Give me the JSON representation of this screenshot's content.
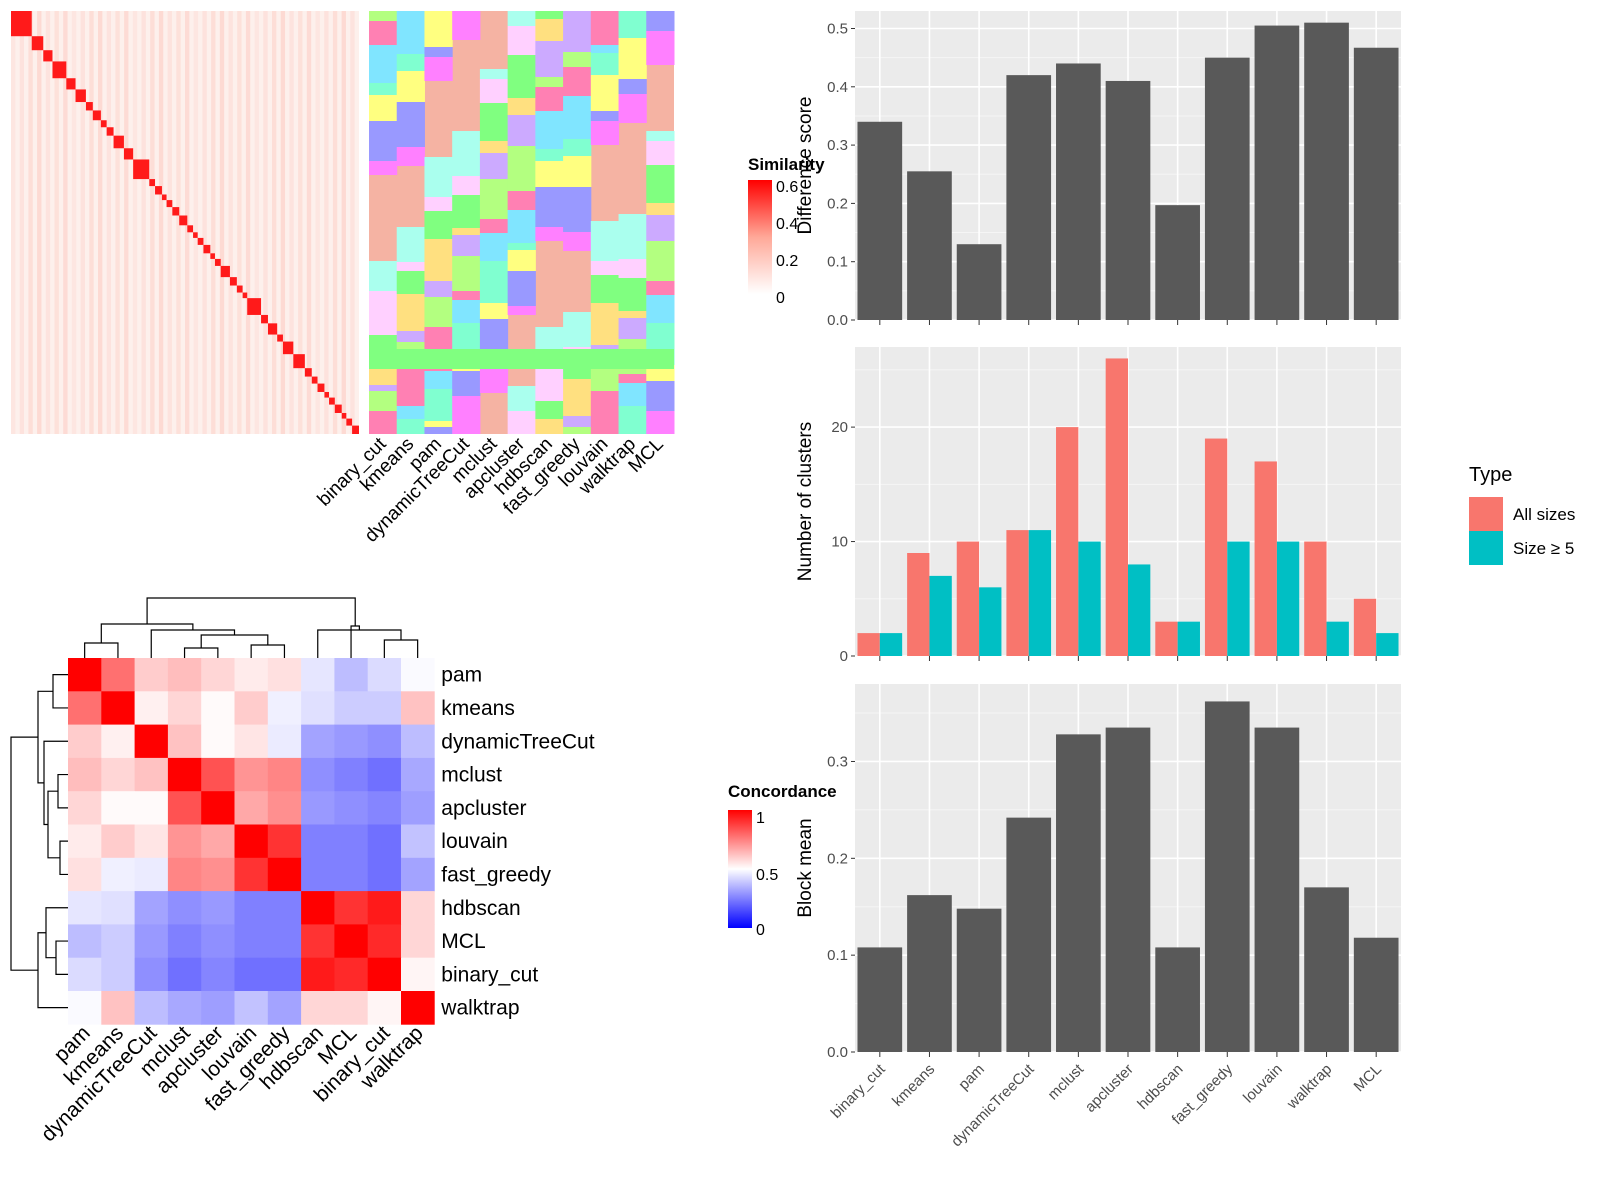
{
  "top_heatmap": {
    "legend_title": "Similarity",
    "legend_ticks": [
      "0.6",
      "0.4",
      "0.2",
      "0"
    ],
    "methods": [
      "binary_cut",
      "kmeans",
      "pam",
      "dynamicTreeCut",
      "mclust",
      "apcluster",
      "hdbscan",
      "fast_greedy",
      "louvain",
      "walktrap",
      "MCL"
    ]
  },
  "concordance_heatmap": {
    "legend_title": "Concordance",
    "legend_ticks": [
      "1",
      "0.5",
      "0"
    ],
    "rows": [
      "pam",
      "kmeans",
      "dynamicTreeCut",
      "mclust",
      "apcluster",
      "louvain",
      "fast_greedy",
      "hdbscan",
      "MCL",
      "binary_cut",
      "walktrap"
    ],
    "cols": [
      "pam",
      "kmeans",
      "dynamicTreeCut",
      "mclust",
      "apcluster",
      "louvain",
      "fast_greedy",
      "hdbscan",
      "MCL",
      "binary_cut",
      "walktrap"
    ]
  },
  "chart_data": [
    {
      "type": "heatmap",
      "name": "concordance",
      "rows": [
        "pam",
        "kmeans",
        "dynamicTreeCut",
        "mclust",
        "apcluster",
        "louvain",
        "fast_greedy",
        "hdbscan",
        "MCL",
        "binary_cut",
        "walktrap"
      ],
      "cols": [
        "pam",
        "kmeans",
        "dynamicTreeCut",
        "mclust",
        "apcluster",
        "louvain",
        "fast_greedy",
        "hdbscan",
        "MCL",
        "binary_cut",
        "walktrap"
      ],
      "values": [
        [
          1.0,
          0.78,
          0.6,
          0.63,
          0.58,
          0.54,
          0.56,
          0.45,
          0.37,
          0.43,
          0.49
        ],
        [
          0.78,
          1.0,
          0.53,
          0.58,
          0.51,
          0.6,
          0.47,
          0.44,
          0.4,
          0.4,
          0.62
        ],
        [
          0.6,
          0.53,
          1.0,
          0.62,
          0.51,
          0.55,
          0.46,
          0.32,
          0.3,
          0.28,
          0.37
        ],
        [
          0.63,
          0.58,
          0.62,
          1.0,
          0.84,
          0.71,
          0.74,
          0.28,
          0.25,
          0.22,
          0.33
        ],
        [
          0.58,
          0.51,
          0.51,
          0.84,
          1.0,
          0.67,
          0.72,
          0.3,
          0.28,
          0.26,
          0.31
        ],
        [
          0.54,
          0.6,
          0.55,
          0.71,
          0.67,
          1.0,
          0.9,
          0.25,
          0.25,
          0.22,
          0.38
        ],
        [
          0.56,
          0.47,
          0.46,
          0.74,
          0.72,
          0.9,
          1.0,
          0.25,
          0.25,
          0.22,
          0.32
        ],
        [
          0.45,
          0.44,
          0.32,
          0.28,
          0.3,
          0.25,
          0.25,
          1.0,
          0.9,
          0.95,
          0.58
        ],
        [
          0.37,
          0.4,
          0.3,
          0.25,
          0.28,
          0.25,
          0.25,
          0.9,
          1.0,
          0.92,
          0.58
        ],
        [
          0.43,
          0.4,
          0.28,
          0.22,
          0.26,
          0.22,
          0.22,
          0.95,
          0.92,
          1.0,
          0.52
        ],
        [
          0.49,
          0.62,
          0.37,
          0.33,
          0.31,
          0.38,
          0.32,
          0.58,
          0.58,
          0.52,
          1.0
        ]
      ],
      "scale": {
        "min": 0,
        "mid": 0.5,
        "max": 1
      }
    },
    {
      "type": "bar",
      "name": "difference",
      "ylabel": "Difference score",
      "categories": [
        "binary_cut",
        "kmeans",
        "pam",
        "dynamicTreeCut",
        "mclust",
        "apcluster",
        "hdbscan",
        "fast_greedy",
        "louvain",
        "walktrap",
        "MCL"
      ],
      "values": [
        0.34,
        0.255,
        0.13,
        0.42,
        0.44,
        0.41,
        0.197,
        0.45,
        0.505,
        0.51,
        0.467
      ],
      "ylim": [
        0,
        0.53
      ],
      "yticks": [
        0.0,
        0.1,
        0.2,
        0.3,
        0.4,
        0.5
      ],
      "ytick_labels": [
        "0.0",
        "0.1",
        "0.2",
        "0.3",
        "0.4",
        "0.5"
      ],
      "color": "#595959"
    },
    {
      "type": "bar",
      "name": "clusters",
      "ylabel": "Number of clusters",
      "categories": [
        "binary_cut",
        "kmeans",
        "pam",
        "dynamicTreeCut",
        "mclust",
        "apcluster",
        "hdbscan",
        "fast_greedy",
        "louvain",
        "walktrap",
        "MCL"
      ],
      "series": [
        {
          "name": "All sizes",
          "values": [
            2,
            9,
            10,
            11,
            20,
            26,
            3,
            19,
            17,
            10,
            5
          ],
          "color": "#F8766D"
        },
        {
          "name": "Size ≥ 5",
          "values": [
            2,
            7,
            6,
            11,
            10,
            8,
            3,
            10,
            10,
            3,
            2
          ],
          "color": "#00BFC4"
        }
      ],
      "legend_title": "Type",
      "ylim": [
        0,
        27
      ],
      "yticks": [
        0,
        10,
        20
      ],
      "ytick_labels": [
        "0",
        "10",
        "20"
      ]
    },
    {
      "type": "bar",
      "name": "blockmean",
      "ylabel": "Block mean",
      "categories": [
        "binary_cut",
        "kmeans",
        "pam",
        "dynamicTreeCut",
        "mclust",
        "apcluster",
        "hdbscan",
        "fast_greedy",
        "louvain",
        "walktrap",
        "MCL"
      ],
      "values": [
        0.108,
        0.162,
        0.148,
        0.242,
        0.328,
        0.335,
        0.108,
        0.362,
        0.335,
        0.17,
        0.118
      ],
      "ylim": [
        0,
        0.38
      ],
      "yticks": [
        0.0,
        0.1,
        0.2,
        0.3
      ],
      "ytick_labels": [
        "0.0",
        "0.1",
        "0.2",
        "0.3"
      ],
      "color": "#595959"
    }
  ]
}
